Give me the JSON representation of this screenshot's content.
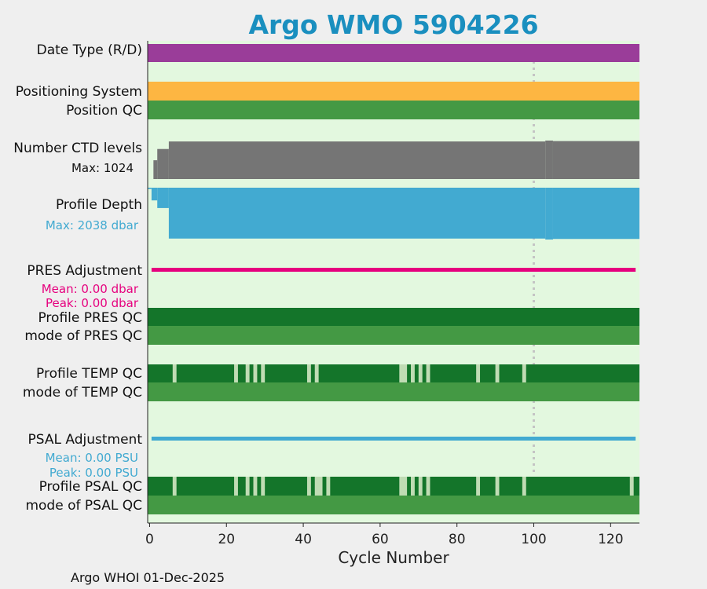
{
  "footer": "Argo WHOI 01-Dec-2025",
  "chart_data": {
    "type": "timeline",
    "title": "Argo WMO 5904226",
    "xlabel": "Cycle Number",
    "xlim": [
      -0.5,
      127.5
    ],
    "xticks": [
      0,
      20,
      40,
      60,
      80,
      100,
      120
    ],
    "reference_line_x": 100,
    "colors": {
      "background": "#e3f8df",
      "date_type": "#9a3d99",
      "positioning": "#fdb642",
      "qc_good": "#449944",
      "qc_profile_good": "#14752a",
      "qc_profile_gap": "#c0dcb4",
      "ctd": "#757575",
      "depth": "#42aad1",
      "pres_adj": "#e6007e",
      "psal_adj": "#42aad1"
    },
    "rows": {
      "date_type": "Date Type (R/D)",
      "positioning_system": "Positioning System",
      "position_qc": "Position QC",
      "ctd_levels": "Number CTD levels",
      "ctd_max": "Max: 1024",
      "profile_depth": "Profile Depth",
      "depth_max": "Max: 2038 dbar",
      "pres_adjustment": "PRES Adjustment",
      "pres_mean": "Mean: 0.00 dbar",
      "pres_peak": "Peak: 0.00 dbar",
      "profile_pres_qc": "Profile PRES QC",
      "mode_pres_qc": "mode of PRES QC",
      "profile_temp_qc": "Profile TEMP QC",
      "mode_temp_qc": "mode of TEMP QC",
      "psal_adjustment": "PSAL Adjustment",
      "psal_mean": "Mean: 0.00 PSU",
      "psal_peak": "Peak: 0.00 PSU",
      "profile_psal_qc": "Profile PSAL QC",
      "mode_psal_qc": "mode of PSAL QC"
    },
    "ctd_levels": {
      "max": 1024,
      "segments": [
        {
          "from": 0,
          "to": 1,
          "value": 0
        },
        {
          "from": 1,
          "to": 2,
          "value": 500
        },
        {
          "from": 2,
          "to": 5,
          "value": 800
        },
        {
          "from": 5,
          "to": 103,
          "value": 1000
        },
        {
          "from": 103,
          "to": 105,
          "value": 1024
        },
        {
          "from": 105,
          "to": 127.5,
          "value": 1010
        }
      ]
    },
    "profile_depth": {
      "max": 2038,
      "segments": [
        {
          "from": -0.5,
          "to": 0.5,
          "value": 50
        },
        {
          "from": 0.5,
          "to": 2,
          "value": 500
        },
        {
          "from": 2,
          "to": 5,
          "value": 800
        },
        {
          "from": 5,
          "to": 103,
          "value": 2000
        },
        {
          "from": 103,
          "to": 105,
          "value": 2038
        },
        {
          "from": 105,
          "to": 127.5,
          "value": 2015
        }
      ]
    },
    "pres_adjustment": {
      "mean": 0.0,
      "peak": 0.0,
      "from": 0.5,
      "to": 126.5
    },
    "psal_adjustment": {
      "mean": 0.0,
      "peak": 0.0,
      "from": 0.5,
      "to": 126.5
    },
    "temp_qc_gaps": [
      [
        6,
        7
      ],
      [
        22,
        23
      ],
      [
        25,
        26
      ],
      [
        27,
        28
      ],
      [
        29,
        30
      ],
      [
        41,
        42
      ],
      [
        43,
        44
      ],
      [
        65,
        67
      ],
      [
        68,
        69
      ],
      [
        70,
        71
      ],
      [
        72,
        73
      ],
      [
        85,
        86
      ],
      [
        90,
        91
      ],
      [
        97,
        98
      ]
    ],
    "psal_qc_gaps": [
      [
        6,
        7
      ],
      [
        22,
        23
      ],
      [
        25,
        26
      ],
      [
        27,
        28
      ],
      [
        29,
        30
      ],
      [
        41,
        42
      ],
      [
        43,
        45
      ],
      [
        46,
        47
      ],
      [
        65,
        67
      ],
      [
        68,
        69
      ],
      [
        70,
        71
      ],
      [
        72,
        73
      ],
      [
        85,
        86
      ],
      [
        90,
        91
      ],
      [
        97,
        98
      ],
      [
        125,
        126
      ]
    ]
  }
}
